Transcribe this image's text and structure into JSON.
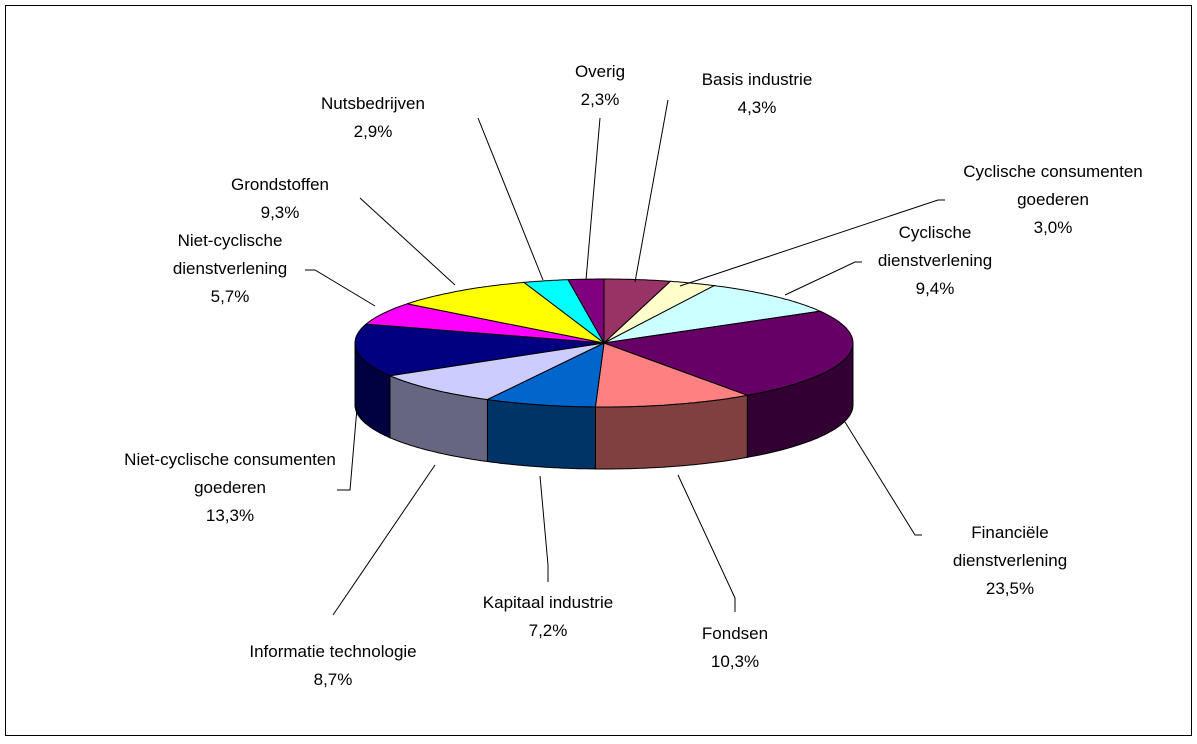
{
  "chart_data": {
    "type": "pie3d",
    "categories": [
      "Basis industrie",
      "Cyclische consumenten goederen",
      "Cyclische dienstverlening",
      "Financiële dienstverlening",
      "Fondsen",
      "Kapitaal industrie",
      "Informatie technologie",
      "Niet-cyclische consumenten goederen",
      "Niet-cyclische dienstverlening",
      "Grondstoffen",
      "Nutsbedrijven",
      "Overig"
    ],
    "values": [
      4.3,
      3.0,
      9.4,
      23.5,
      10.3,
      7.2,
      8.7,
      13.3,
      5.7,
      9.3,
      2.9,
      2.3
    ],
    "value_labels": [
      "4,3%",
      "3,0%",
      "9,4%",
      "23,5%",
      "10,3%",
      "7,2%",
      "8,7%",
      "13,3%",
      "5,7%",
      "9,3%",
      "2,9%",
      "2,3%"
    ],
    "colors": [
      "#993366",
      "#FFFFCC",
      "#CCFFFF",
      "#660066",
      "#FF8080",
      "#0066CC",
      "#CCCCFF",
      "#000080",
      "#FF00FF",
      "#FFFF00",
      "#00FFFF",
      "#800080"
    ]
  }
}
